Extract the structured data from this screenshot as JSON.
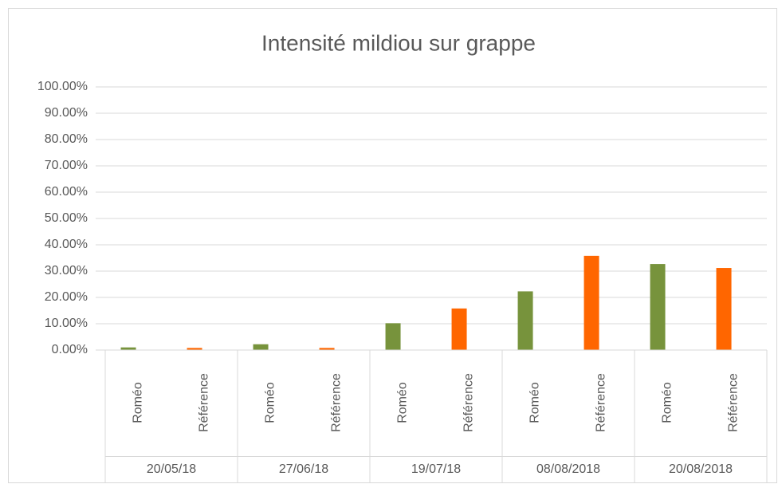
{
  "chart_data": {
    "type": "bar",
    "title": "Intensité mildiou sur grappe",
    "categories": [
      "20/05/18",
      "27/06/18",
      "19/07/18",
      "08/08/2018",
      "20/08/2018"
    ],
    "series": [
      {
        "name": "Roméo",
        "color": "#77933c",
        "values": [
          1.0,
          2.2,
          10.2,
          22.3,
          32.7
        ]
      },
      {
        "name": "Référence",
        "color": "#ff6600",
        "values": [
          0.8,
          0.8,
          15.8,
          35.8,
          31.2
        ]
      }
    ],
    "ylim": [
      0,
      100
    ],
    "yticks": [
      {
        "value": 0,
        "label": "0.00%"
      },
      {
        "value": 10,
        "label": "10.00%"
      },
      {
        "value": 20,
        "label": "20.00%"
      },
      {
        "value": 30,
        "label": "30.00%"
      },
      {
        "value": 40,
        "label": "40.00%"
      },
      {
        "value": 50,
        "label": "50.00%"
      },
      {
        "value": 60,
        "label": "60.00%"
      },
      {
        "value": 70,
        "label": "70.00%"
      },
      {
        "value": 80,
        "label": "80.00%"
      },
      {
        "value": 90,
        "label": "90.00%"
      },
      {
        "value": 100,
        "label": "100.00%"
      }
    ],
    "grid": true
  }
}
